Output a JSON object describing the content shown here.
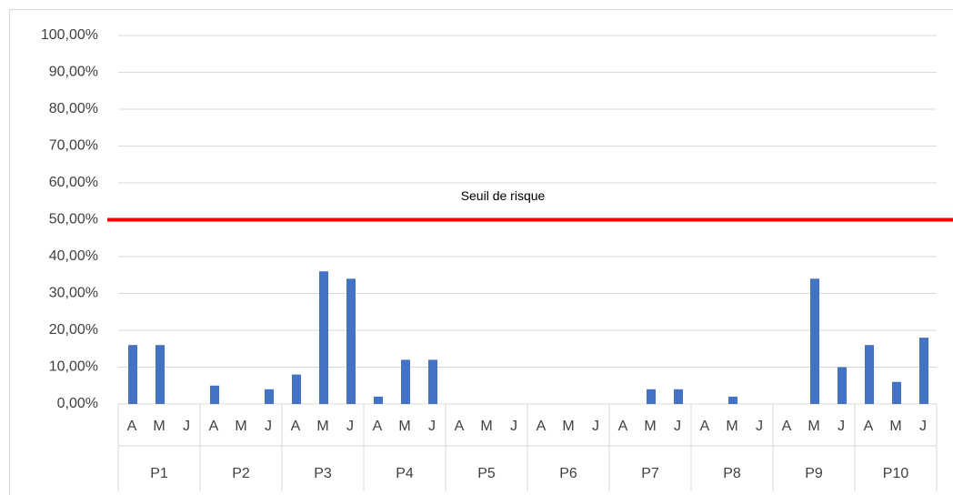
{
  "chart_data": {
    "type": "bar",
    "groups": [
      "P1",
      "P2",
      "P3",
      "P4",
      "P5",
      "P6",
      "P7",
      "P8",
      "P9",
      "P10"
    ],
    "categories": [
      "A",
      "M",
      "J",
      "A",
      "M",
      "J",
      "A",
      "M",
      "J",
      "A",
      "M",
      "J",
      "A",
      "M",
      "J",
      "A",
      "M",
      "J",
      "A",
      "M",
      "J",
      "A",
      "M",
      "J",
      "A",
      "M",
      "J",
      "A",
      "M",
      "J"
    ],
    "series": [
      {
        "color": "#4472c4",
        "values": [
          16,
          16,
          0,
          5,
          0,
          4,
          8,
          36,
          34,
          2,
          12,
          12,
          0,
          0,
          0,
          0,
          0,
          0,
          0,
          4,
          4,
          0,
          2,
          0,
          0,
          34,
          10,
          16,
          6,
          18
        ]
      }
    ],
    "ylim": [
      0,
      100
    ],
    "yticks": [
      {
        "value": 0,
        "label": "0,00%"
      },
      {
        "value": 10,
        "label": "10,00%"
      },
      {
        "value": 20,
        "label": "20,00%"
      },
      {
        "value": 30,
        "label": "30,00%"
      },
      {
        "value": 40,
        "label": "40,00%"
      },
      {
        "value": 50,
        "label": "50,00%"
      },
      {
        "value": 60,
        "label": "60,00%"
      },
      {
        "value": 70,
        "label": "70,00%"
      },
      {
        "value": 80,
        "label": "80,00%"
      },
      {
        "value": 90,
        "label": "90,00%"
      },
      {
        "value": 100,
        "label": "100,00%"
      }
    ],
    "grid": true,
    "threshold": {
      "value": 50,
      "label": "Seuil de risque",
      "color": "#ff0000"
    }
  }
}
